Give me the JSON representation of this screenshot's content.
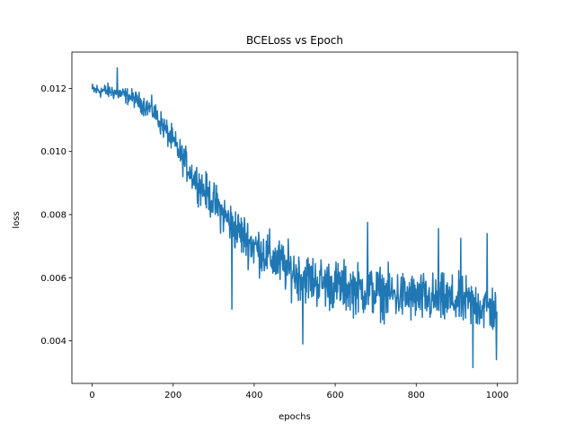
{
  "chart_data": {
    "type": "line",
    "title": "BCELoss vs Epoch",
    "xlabel": "epochs",
    "ylabel": "loss",
    "xlim": [
      -50,
      1050
    ],
    "ylim": [
      0.00265,
      0.01315
    ],
    "xticks": [
      0,
      200,
      400,
      600,
      800,
      1000
    ],
    "yticks": [
      0.004,
      0.006,
      0.008,
      0.01,
      0.012
    ],
    "xtick_labels": [
      "0",
      "200",
      "400",
      "600",
      "800",
      "1000"
    ],
    "ytick_labels": [
      "0.004",
      "0.006",
      "0.008",
      "0.010",
      "0.012"
    ],
    "grid": false,
    "series": [
      {
        "color": "#1f77b4",
        "n_points": 1000,
        "trend": [
          [
            0,
            0.01195
          ],
          [
            50,
            0.0119
          ],
          [
            100,
            0.0117
          ],
          [
            150,
            0.0113
          ],
          [
            200,
            0.0103
          ],
          [
            250,
            0.0092
          ],
          [
            300,
            0.0084
          ],
          [
            350,
            0.0076
          ],
          [
            400,
            0.007
          ],
          [
            450,
            0.00655
          ],
          [
            500,
            0.00615
          ],
          [
            550,
            0.0059
          ],
          [
            600,
            0.00575
          ],
          [
            650,
            0.00565
          ],
          [
            700,
            0.00555
          ],
          [
            750,
            0.00545
          ],
          [
            800,
            0.00535
          ],
          [
            850,
            0.0053
          ],
          [
            900,
            0.00525
          ],
          [
            950,
            0.00515
          ],
          [
            1000,
            0.00495
          ]
        ],
        "noise_envelope": [
          [
            0,
            0.00025
          ],
          [
            100,
            0.0003
          ],
          [
            200,
            0.0005
          ],
          [
            300,
            0.0007
          ],
          [
            400,
            0.00085
          ],
          [
            500,
            0.0009
          ],
          [
            600,
            0.0009
          ],
          [
            800,
            0.0009
          ],
          [
            1000,
            0.0009
          ]
        ],
        "notable_points": [
          [
            62,
            0.01265
          ],
          [
            345,
            0.005
          ],
          [
            520,
            0.0039
          ],
          [
            680,
            0.00775
          ],
          [
            855,
            0.00755
          ],
          [
            910,
            0.00725
          ],
          [
            940,
            0.00315
          ],
          [
            975,
            0.0074
          ],
          [
            998,
            0.0034
          ]
        ]
      }
    ]
  }
}
